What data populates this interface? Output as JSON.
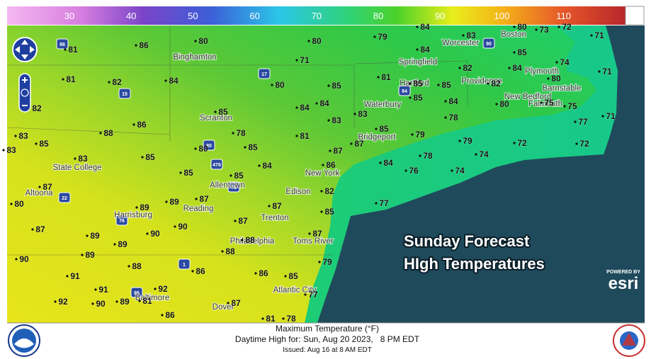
{
  "scale": {
    "labels": [
      30,
      40,
      50,
      60,
      70,
      80,
      90,
      100,
      110
    ]
  },
  "map": {
    "temperatures": [
      84,
      79,
      83,
      80,
      73,
      72,
      71,
      81,
      86,
      80,
      80,
      84,
      85,
      74,
      71,
      71,
      81,
      82,
      84,
      80,
      85,
      81,
      85,
      85,
      82,
      84,
      82,
      80,
      82,
      85,
      84,
      84,
      83,
      85,
      84,
      80,
      75,
      75,
      71,
      83,
      88,
      86,
      78,
      81,
      83,
      85,
      79,
      78,
      77,
      85,
      83,
      85,
      80,
      85,
      87,
      87,
      78,
      79,
      74,
      72,
      72,
      83,
      85,
      85,
      84,
      86,
      84,
      76,
      74,
      87,
      87,
      82,
      80,
      89,
      89,
      87,
      85,
      77,
      87,
      89,
      90,
      90,
      87,
      88,
      87,
      89,
      88,
      89,
      90,
      88,
      86,
      86,
      85,
      79,
      91,
      91,
      92,
      77,
      92,
      90,
      89,
      81,
      87,
      86,
      81,
      78
    ],
    "cities": [
      "Binghamton",
      "Springfield",
      "Worcester",
      "Boston",
      "Plymouth",
      "Hartford",
      "Providence",
      "New Bedford",
      "Barnstable",
      "Falmouth",
      "Scranton",
      "Waterbury",
      "Bridgeport",
      "State College",
      "New York",
      "Edison",
      "Allentown",
      "Altoona",
      "Reading",
      "Harrisburg",
      "Trenton",
      "Philadelphia",
      "Toms River",
      "Baltimore",
      "Atlantic City",
      "Dover"
    ],
    "highways": [
      "86",
      "15",
      "17",
      "80",
      "476",
      "22",
      "78",
      "76",
      "1",
      "95",
      "84",
      "90"
    ]
  },
  "overlay": {
    "title": "Sunday Forecast",
    "subtitle": "HIgh Temperatures",
    "powered_by": "POWERED BY",
    "brand": "esri"
  },
  "footer": {
    "line1": "Maximum Temperature (°F)",
    "line2": "Daytime High for: Sun, Aug 20 2023,   8 PM EDT",
    "line3": "Issued: Aug 16 at 8 AM EDT"
  }
}
